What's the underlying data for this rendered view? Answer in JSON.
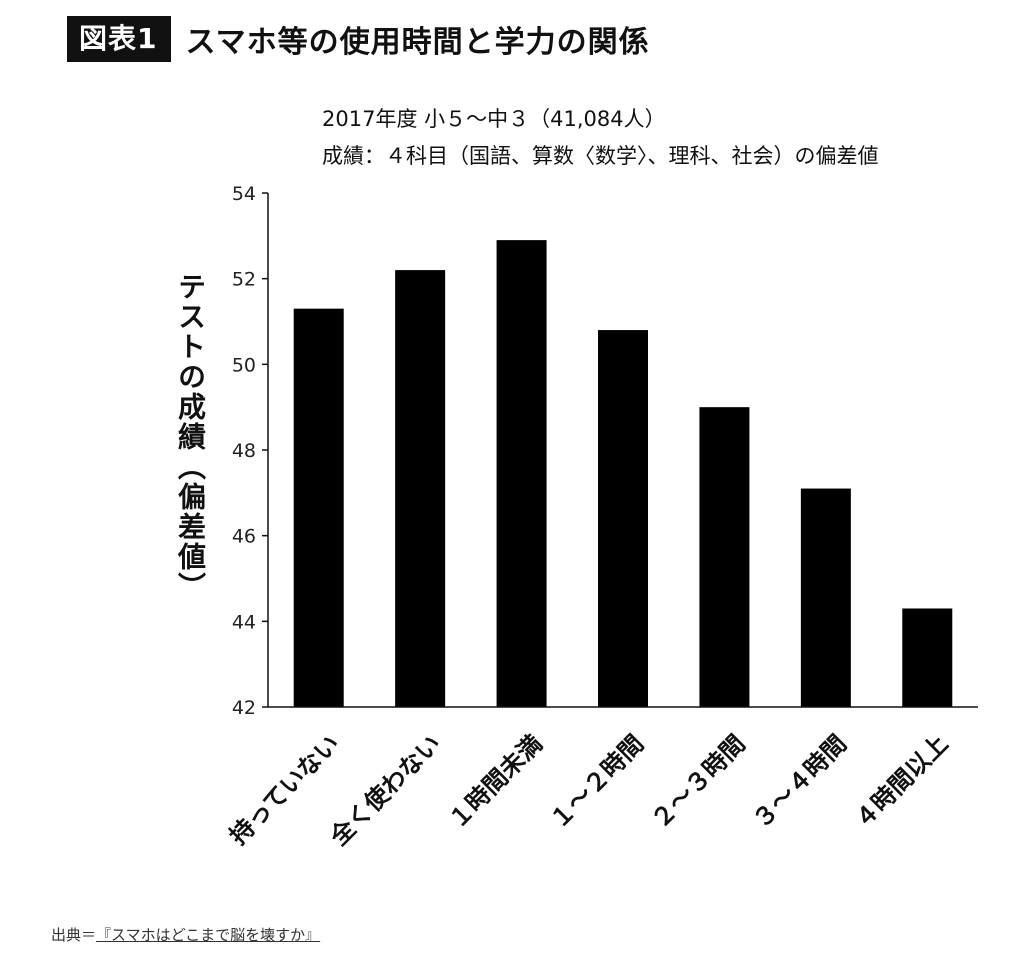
{
  "header": {
    "badge": "図表1",
    "title": "スマホ等の使用時間と学力の関係"
  },
  "chart_data": {
    "type": "bar",
    "subtitle_lines": [
      "2017年度 小５～中３（41,084人）",
      "成績：４科目（国語、算数〈数学〉、理科、社会）の偏差値"
    ],
    "ylabel": "テストの成績（偏差値）",
    "xlabel": "",
    "categories": [
      "持っていない",
      "全く使わない",
      "１時間未満",
      "１～２時間",
      "２～３時間",
      "３～４時間",
      "４時間以上"
    ],
    "values": [
      51.3,
      52.2,
      52.9,
      50.8,
      49.0,
      47.1,
      44.3
    ],
    "ylim": [
      42,
      54
    ],
    "yticks": [
      "42",
      "44",
      "46",
      "48",
      "50",
      "52",
      "54"
    ],
    "grid": false,
    "colors": {
      "bar": "#000000"
    }
  },
  "source": {
    "prefix": "出典＝",
    "book": "『スマホはどこまで脳を壊すか』"
  }
}
